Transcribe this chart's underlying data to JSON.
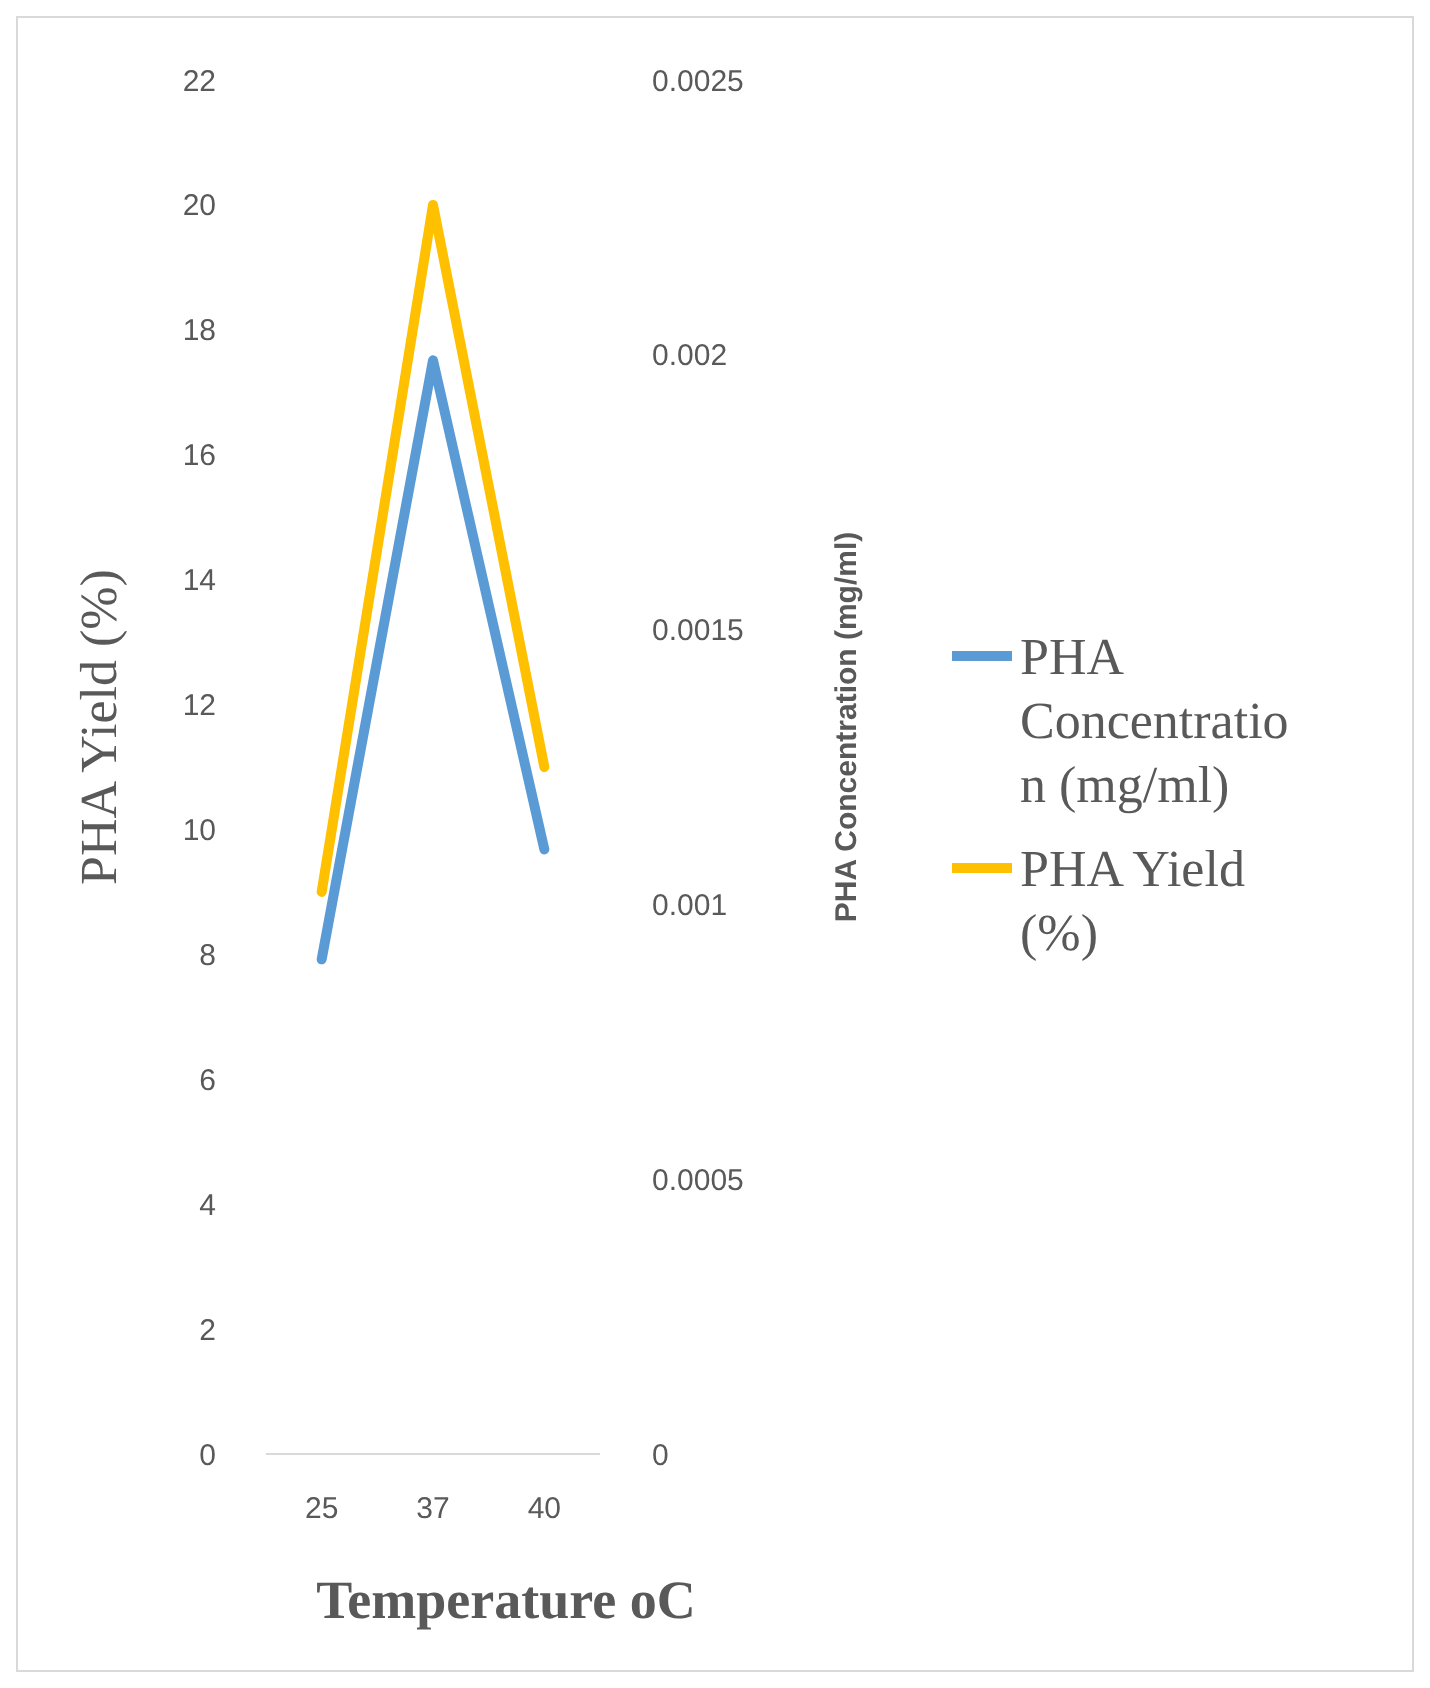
{
  "chart_data": {
    "type": "line",
    "xlabel": "Temperature oC",
    "ylabel": "PHA Yield (%)",
    "y2label": "PHA Concentration (mg/ml)",
    "categories": [
      "25",
      "37",
      "40"
    ],
    "series": [
      {
        "name": "PHA Concentration (mg/ml)",
        "color": "#5b9bd5",
        "values": [
          0.0009,
          0.00199,
          0.0011
        ],
        "axis": "y2"
      },
      {
        "name": "PHA Yield (%)",
        "color": "#ffc000",
        "values": [
          9,
          20,
          11
        ]
      }
    ],
    "ylim": [
      0,
      22
    ],
    "yticks": [
      0,
      2,
      4,
      6,
      8,
      10,
      12,
      14,
      16,
      18,
      20,
      22
    ],
    "y2lim": [
      0,
      0.0025
    ],
    "y2ticks": [
      0,
      0.0005,
      0.001,
      0.0015,
      0.002,
      0.0025
    ],
    "legend": "right",
    "grid": false,
    "marker": "none",
    "line_style": "solid"
  }
}
